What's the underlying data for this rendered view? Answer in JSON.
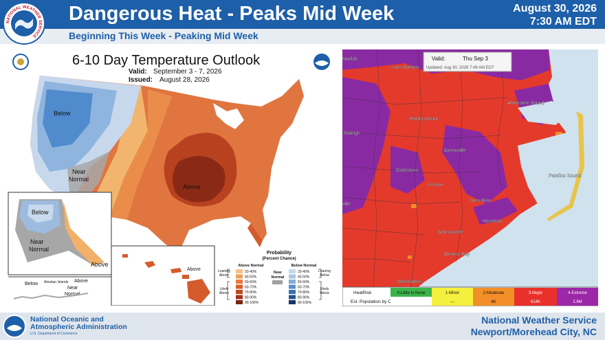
{
  "header": {
    "title": "Dangerous Heat - Peaks Mid Week",
    "date": "August 30, 2026",
    "time": "7:30 AM EDT",
    "subtitle": "Beginning This Week - Peaking Mid Week",
    "logo_ring_text": "NATIONAL WEATHER SERVICE"
  },
  "outlook": {
    "title": "6-10 Day Temperature Outlook",
    "valid_label": "Valid:",
    "valid_value": "September 3 - 7, 2026",
    "issued_label": "Issued:",
    "issued_value": "August 28, 2026",
    "map_labels": {
      "below": "Below",
      "near": "Near",
      "normal": "Normal",
      "above": "Above",
      "aleutian": "Aleutian Islands"
    },
    "legend": {
      "title": "Probability",
      "subtitle": "(Percent Chance)",
      "above_header": "Above Normal",
      "below_header": "Below Normal",
      "near_header": "Near",
      "near_header2": "Normal",
      "leaning_above_1": "Leaning",
      "leaning_above_2": "Above",
      "likely_above_1": "Likely",
      "likely_above_2": "Above",
      "leaning_below_1": "Leaning",
      "leaning_below_2": "Below",
      "likely_below_1": "Likely",
      "likely_below_2": "Below",
      "above_ranges": [
        "33-40%",
        "40-50%",
        "50-60%",
        "60-70%",
        "70-80%",
        "80-90%",
        "90-100%"
      ],
      "below_ranges": [
        "33-40%",
        "40-50%",
        "50-60%",
        "60-70%",
        "70-80%",
        "80-90%",
        "90-100%"
      ],
      "above_colors": [
        "#f2c27f",
        "#ee9f59",
        "#e9773f",
        "#de5a2a",
        "#c4431f",
        "#a5321a",
        "#7d2212"
      ],
      "below_colors": [
        "#c5d6ea",
        "#a8c4e3",
        "#84acd9",
        "#5b8fcb",
        "#3c6fb3",
        "#26528f",
        "#173668"
      ],
      "near_color": "#a0a0a0"
    }
  },
  "heatrisk": {
    "valid_label": "Valid:",
    "valid_day": "Thu  Sep 3",
    "updated": "Updated: Aug 30, 2026 7:49 AM EDT",
    "places": [
      "Lake Gaston",
      "Norfolk",
      "Albemarle Sound",
      "Rocky Mount",
      "Raleigh",
      "Greenville",
      "Goldsboro",
      "Kinston",
      "New Bern",
      "Havelock",
      "Pamlico Sound",
      "Jacksonville",
      "Onslow Bay",
      "Wilmington"
    ],
    "place_truncated_left": "ville",
    "table": {
      "row1_header": "HeatRisk",
      "row2_header": "Est. Population by Category",
      "categories": [
        "0-Little to None",
        "1-Minor",
        "2-Moderate",
        "3-Major",
        "4-Extreme"
      ],
      "populations": [
        "",
        "---",
        "6K",
        "614K",
        "2.6M"
      ],
      "colors": [
        "#3bb34a",
        "#f5f03d",
        "#f28f28",
        "#e8312a",
        "#9c27a8"
      ]
    }
  },
  "footer": {
    "noaa_line1": "National Oceanic and",
    "noaa_line2": "Atmospheric Administration",
    "noaa_dept": "U.S. Department of Commerce",
    "nws_line1": "National Weather Service",
    "nws_line2": "Newport/Morehead City, NC"
  }
}
